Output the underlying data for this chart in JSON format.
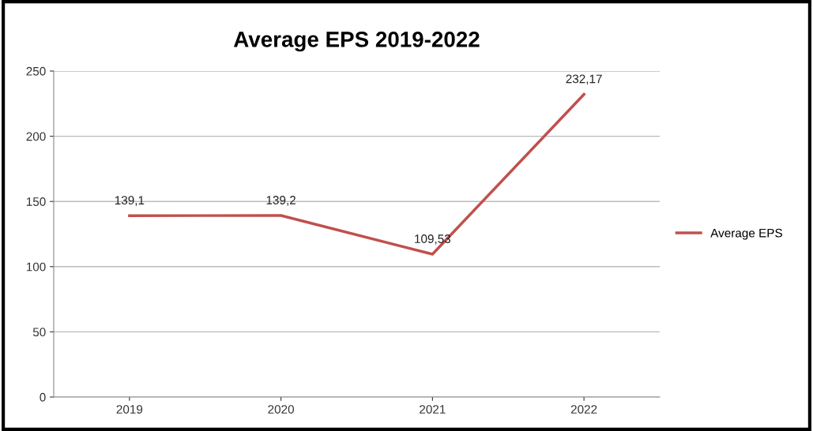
{
  "chart_data": {
    "type": "line",
    "title": "Average EPS 2019-2022",
    "categories": [
      "2019",
      "2020",
      "2021",
      "2022"
    ],
    "series": [
      {
        "name": "Average EPS",
        "color": "#c0504d",
        "values": [
          139.1,
          139.2,
          109.53,
          232.17
        ],
        "value_labels": [
          "139,1",
          "139,2",
          "109,53",
          "232,17"
        ]
      }
    ],
    "ylim": [
      0,
      250
    ],
    "yticks": [
      0,
      50,
      100,
      150,
      200,
      250
    ],
    "grid": "y",
    "legend": "right",
    "marker": "none",
    "line_style": "solid"
  }
}
